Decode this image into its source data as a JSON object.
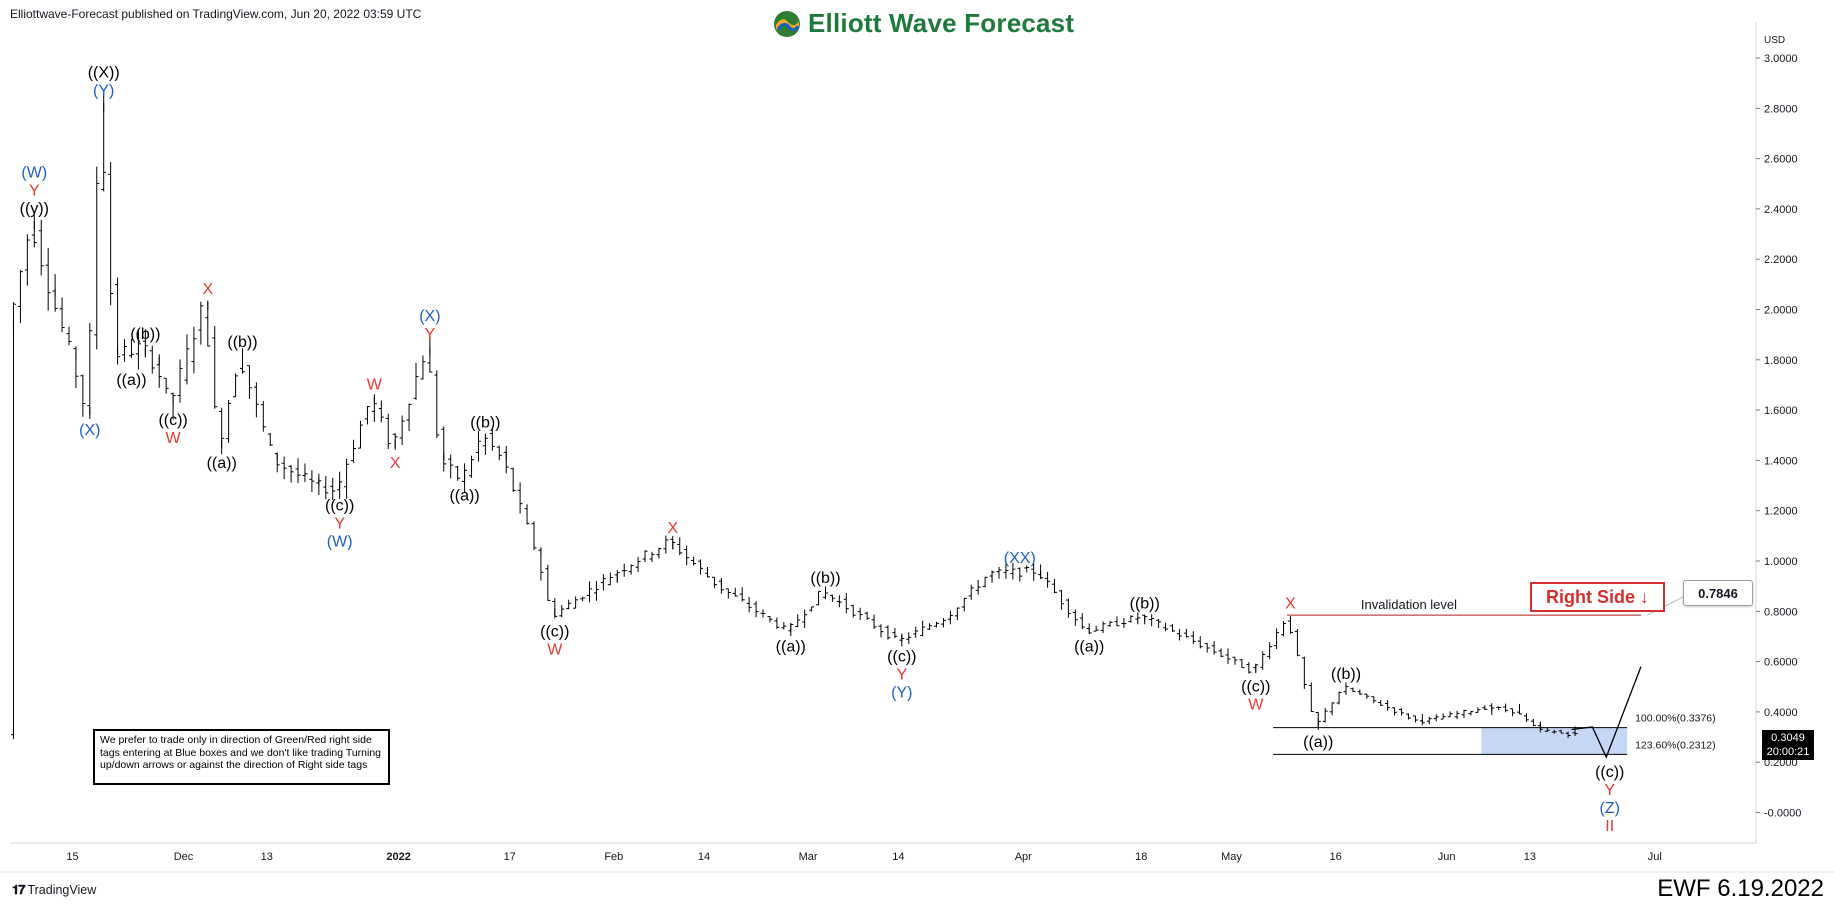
{
  "publisher": "Elliottwave-Forecast published on TradingView.com, Jun 20, 2022 03:59 UTC",
  "brand": "Elliott Wave Forecast",
  "footer_logo": "TradingView",
  "stamp": "EWF 6.19.2022",
  "disclaimer": "We prefer to trade only in direction of Green/Red right side tags entering at Blue boxes and we don't like trading Turning up/down arrows or against the direction of Right side tags",
  "right_side_tag": "Right Side ↓",
  "invalidation_callout": "0.7846",
  "last_price": "0.3049",
  "countdown": "20:00:21",
  "colors": {
    "wave_black": "#000000",
    "wave_red": "#e53935",
    "wave_blue": "#1e5fc2",
    "box_fill": "#bcd0f5",
    "invalidation_line": "#b71c1c"
  },
  "chart_data": {
    "type": "ohlc",
    "currency": "USD",
    "ylim": [
      -0.05,
      3.05
    ],
    "y_ticks": [
      "3.0000",
      "2.8000",
      "2.6000",
      "2.4000",
      "2.2000",
      "2.0000",
      "1.8000",
      "1.6000",
      "1.4000",
      "1.2000",
      "1.0000",
      "0.8000",
      "0.6000",
      "0.4000",
      "0.2000",
      "-0.0000"
    ],
    "y_tick_values": [
      3.0,
      2.8,
      2.6,
      2.4,
      2.2,
      2.0,
      1.8,
      1.6,
      1.4,
      1.2,
      1.0,
      0.8,
      0.6,
      0.4,
      0.2,
      0.0
    ],
    "x_ticks": [
      "15",
      "Dec",
      "13",
      "2022",
      "17",
      "Feb",
      "14",
      "Mar",
      "14",
      "Apr",
      "18",
      "May",
      "16",
      "Jun",
      "13",
      "Jul"
    ],
    "x_tick_dates": [
      "2021-11-15",
      "2021-12-01",
      "2021-12-13",
      "2022-01-01",
      "2022-01-17",
      "2022-02-01",
      "2022-02-14",
      "2022-03-01",
      "2022-03-14",
      "2022-04-01",
      "2022-04-18",
      "2022-05-01",
      "2022-05-16",
      "2022-06-01",
      "2022-06-13",
      "2022-07-01"
    ],
    "x_range": [
      "2021-11-06",
      "2022-07-15"
    ],
    "bold_x_ticks": [
      "2022"
    ],
    "anchors": [
      [
        "2021-11-06",
        1.95
      ],
      [
        "2021-11-09",
        2.35
      ],
      [
        "2021-11-12",
        2.05
      ],
      [
        "2021-11-15",
        1.8
      ],
      [
        "2021-11-17",
        1.58
      ],
      [
        "2021-11-19",
        2.82
      ],
      [
        "2021-11-21",
        1.82
      ],
      [
        "2021-11-25",
        1.85
      ],
      [
        "2021-11-27",
        1.78
      ],
      [
        "2021-11-29",
        1.62
      ],
      [
        "2021-12-04",
        2.03
      ],
      [
        "2021-12-06",
        1.45
      ],
      [
        "2021-12-09",
        1.82
      ],
      [
        "2021-12-14",
        1.4
      ],
      [
        "2021-12-20",
        1.3
      ],
      [
        "2021-12-23",
        1.28
      ],
      [
        "2021-12-28",
        1.65
      ],
      [
        "2021-12-31",
        1.45
      ],
      [
        "2022-01-05",
        1.85
      ],
      [
        "2022-01-07",
        1.4
      ],
      [
        "2022-01-10",
        1.32
      ],
      [
        "2022-01-13",
        1.5
      ],
      [
        "2022-01-16",
        1.4
      ],
      [
        "2022-01-21",
        1.02
      ],
      [
        "2022-01-23",
        0.78
      ],
      [
        "2022-02-01",
        0.95
      ],
      [
        "2022-02-09",
        1.08
      ],
      [
        "2022-02-16",
        0.9
      ],
      [
        "2022-02-26",
        0.72
      ],
      [
        "2022-03-03",
        0.88
      ],
      [
        "2022-03-14",
        0.68
      ],
      [
        "2022-03-21",
        0.78
      ],
      [
        "2022-03-27",
        0.95
      ],
      [
        "2022-04-03",
        0.96
      ],
      [
        "2022-04-10",
        0.72
      ],
      [
        "2022-04-18",
        0.78
      ],
      [
        "2022-04-30",
        0.62
      ],
      [
        "2022-05-04",
        0.56
      ],
      [
        "2022-05-09",
        0.78
      ],
      [
        "2022-05-13",
        0.34
      ],
      [
        "2022-05-17",
        0.5
      ],
      [
        "2022-05-28",
        0.36
      ],
      [
        "2022-06-07",
        0.42
      ],
      [
        "2022-06-11",
        0.4
      ],
      [
        "2022-06-14",
        0.33
      ],
      [
        "2022-06-19",
        0.31
      ]
    ],
    "projection": [
      [
        "2022-06-19",
        0.33
      ],
      [
        "2022-06-22",
        0.34
      ],
      [
        "2022-06-24",
        0.22
      ],
      [
        "2022-06-29",
        0.58
      ]
    ],
    "fib_levels": [
      {
        "label": "100.00%(0.3376)",
        "value": 0.3376,
        "start": "2022-05-07",
        "end": "2022-06-27"
      },
      {
        "label": "123.60%(0.2312)",
        "value": 0.2312,
        "start": "2022-05-07",
        "end": "2022-06-27"
      }
    ],
    "blue_box": {
      "start": "2022-06-06",
      "end": "2022-06-27",
      "top": 0.3376,
      "bottom": 0.2312
    },
    "invalidation": {
      "label": "Invalidation level",
      "value": 0.7846,
      "start": "2022-05-09",
      "end": "2022-06-29"
    },
    "wave_labels": [
      {
        "stack": [
          "(W)",
          "Y",
          "((y))"
        ],
        "colors": [
          "blue",
          "red",
          "black"
        ],
        "date": "2021-11-09",
        "price": 2.35,
        "pos": "above"
      },
      {
        "stack": [
          "((X))",
          "(Y)"
        ],
        "colors": [
          "black",
          "blue"
        ],
        "date": "2021-11-19",
        "price": 2.82,
        "pos": "above"
      },
      {
        "stack": [
          "(X)"
        ],
        "colors": [
          "blue"
        ],
        "date": "2021-11-17",
        "price": 1.58,
        "pos": "below"
      },
      {
        "stack": [
          "((b))"
        ],
        "colors": [
          "black"
        ],
        "date": "2021-11-25",
        "price": 1.85,
        "pos": "above"
      },
      {
        "stack": [
          "((a))"
        ],
        "colors": [
          "black"
        ],
        "date": "2021-11-23",
        "price": 1.78,
        "pos": "below"
      },
      {
        "stack": [
          "((c))",
          "W"
        ],
        "colors": [
          "black",
          "red"
        ],
        "date": "2021-11-29",
        "price": 1.62,
        "pos": "below"
      },
      {
        "stack": [
          "X"
        ],
        "colors": [
          "red"
        ],
        "date": "2021-12-04",
        "price": 2.03,
        "pos": "above"
      },
      {
        "stack": [
          "((b))"
        ],
        "colors": [
          "black"
        ],
        "date": "2021-12-09",
        "price": 1.82,
        "pos": "above"
      },
      {
        "stack": [
          "((a))"
        ],
        "colors": [
          "black"
        ],
        "date": "2021-12-06",
        "price": 1.45,
        "pos": "below"
      },
      {
        "stack": [
          "((c))",
          "Y",
          "(W)"
        ],
        "colors": [
          "black",
          "red",
          "blue"
        ],
        "date": "2021-12-23",
        "price": 1.28,
        "pos": "below"
      },
      {
        "stack": [
          "W"
        ],
        "colors": [
          "red"
        ],
        "date": "2021-12-28",
        "price": 1.65,
        "pos": "above"
      },
      {
        "stack": [
          "X"
        ],
        "colors": [
          "red"
        ],
        "date": "2021-12-31",
        "price": 1.45,
        "pos": "below"
      },
      {
        "stack": [
          "(X)",
          "Y"
        ],
        "colors": [
          "blue",
          "red"
        ],
        "date": "2022-01-05",
        "price": 1.85,
        "pos": "above"
      },
      {
        "stack": [
          "((b))"
        ],
        "colors": [
          "black"
        ],
        "date": "2022-01-13",
        "price": 1.5,
        "pos": "above"
      },
      {
        "stack": [
          "((a))"
        ],
        "colors": [
          "black"
        ],
        "date": "2022-01-10",
        "price": 1.32,
        "pos": "below"
      },
      {
        "stack": [
          "((c))",
          "W"
        ],
        "colors": [
          "black",
          "red"
        ],
        "date": "2022-01-23",
        "price": 0.78,
        "pos": "below"
      },
      {
        "stack": [
          "X"
        ],
        "colors": [
          "red"
        ],
        "date": "2022-02-09",
        "price": 1.08,
        "pos": "above"
      },
      {
        "stack": [
          "((b))"
        ],
        "colors": [
          "black"
        ],
        "date": "2022-03-03",
        "price": 0.88,
        "pos": "above"
      },
      {
        "stack": [
          "((a))"
        ],
        "colors": [
          "black"
        ],
        "date": "2022-02-26",
        "price": 0.72,
        "pos": "below"
      },
      {
        "stack": [
          "((c))",
          "Y",
          "(Y)"
        ],
        "colors": [
          "black",
          "red",
          "blue"
        ],
        "date": "2022-03-14",
        "price": 0.68,
        "pos": "below"
      },
      {
        "stack": [
          "(XX)"
        ],
        "colors": [
          "blue"
        ],
        "date": "2022-03-31",
        "price": 0.96,
        "pos": "above"
      },
      {
        "stack": [
          "((b))"
        ],
        "colors": [
          "black"
        ],
        "date": "2022-04-18",
        "price": 0.78,
        "pos": "above"
      },
      {
        "stack": [
          "((a))"
        ],
        "colors": [
          "black"
        ],
        "date": "2022-04-10",
        "price": 0.72,
        "pos": "below"
      },
      {
        "stack": [
          "((c))",
          "W"
        ],
        "colors": [
          "black",
          "red"
        ],
        "date": "2022-05-04",
        "price": 0.56,
        "pos": "below"
      },
      {
        "stack": [
          "X"
        ],
        "colors": [
          "red"
        ],
        "date": "2022-05-09",
        "price": 0.78,
        "pos": "above"
      },
      {
        "stack": [
          "((b))"
        ],
        "colors": [
          "black"
        ],
        "date": "2022-05-17",
        "price": 0.5,
        "pos": "above"
      },
      {
        "stack": [
          "((a))"
        ],
        "colors": [
          "black"
        ],
        "date": "2022-05-13",
        "price": 0.34,
        "pos": "below"
      },
      {
        "stack": [
          "((c))",
          "Y",
          "(Z)",
          "II"
        ],
        "colors": [
          "black",
          "red",
          "blue",
          "red"
        ],
        "date": "2022-06-24",
        "price": 0.22,
        "pos": "below"
      }
    ]
  }
}
